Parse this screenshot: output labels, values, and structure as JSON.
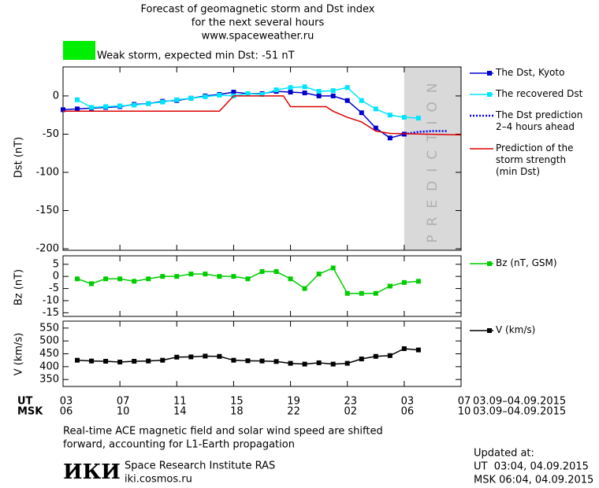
{
  "header": {
    "title_lines": [
      "Forecast of geomagnetic storm and Dst index",
      "for the next several hours",
      "www.spaceweather.ru"
    ]
  },
  "storm": {
    "label": "Weak storm, expected min Dst: -51 nT",
    "color": "#00ee00"
  },
  "chart_data": [
    {
      "type": "line",
      "y_label": "Dst (nT)",
      "ylim": [
        -202,
        38
      ],
      "yticks": [
        0,
        -50,
        -100,
        -150,
        -200
      ],
      "prediction": {
        "label": "PREDICTION",
        "span": [
          24,
          28
        ],
        "color": "#d9d9d9"
      },
      "series": [
        {
          "name": "The Dst, Kyoto",
          "color": "#0000cc",
          "marker": "square",
          "x": [
            0,
            1,
            2,
            3,
            4,
            5,
            6,
            7,
            8,
            9,
            10,
            11,
            12,
            13,
            14,
            15,
            16,
            17,
            18,
            19,
            20,
            21,
            22,
            23,
            24
          ],
          "values": [
            -18,
            -17,
            -16,
            -15,
            -14,
            -11,
            -10,
            -7,
            -6,
            -3,
            0,
            2,
            5,
            3,
            3,
            6,
            5,
            4,
            0,
            0,
            -6,
            -22,
            -42,
            -55,
            -50
          ]
        },
        {
          "name": "The recovered Dst",
          "color": "#00e5ff",
          "marker": "square",
          "x": [
            1,
            2,
            3,
            4,
            5,
            6,
            7,
            8,
            9,
            10,
            11,
            12,
            13,
            14,
            15,
            16,
            17,
            18,
            19,
            20,
            21,
            22,
            23,
            24,
            25
          ],
          "values": [
            -5,
            -15,
            -14,
            -13,
            -12,
            -10,
            -8,
            -5,
            -3,
            -1,
            1,
            0,
            3,
            2,
            8,
            11,
            12,
            6,
            7,
            11,
            -6,
            -17,
            -25,
            -28,
            -29
          ]
        },
        {
          "name": "The Dst prediction\n2–4 hours ahead",
          "color": "#0000ff",
          "dash": true,
          "x": [
            24,
            25,
            26,
            27
          ],
          "values": [
            -50,
            -47,
            -46,
            -46
          ]
        },
        {
          "name": "Prediction of the\nstorm strength\n(min Dst)",
          "color": "#dd0000",
          "x": [
            0,
            11,
            12,
            15.5,
            16,
            18.5,
            19,
            20,
            21,
            22,
            23,
            28
          ],
          "values": [
            -20,
            -20,
            0,
            0,
            -14,
            -14,
            -20,
            -28,
            -34,
            -46,
            -49,
            -51
          ]
        }
      ]
    },
    {
      "type": "line",
      "y_label": "Bz (nT)",
      "ylim": [
        -16.5,
        8.5
      ],
      "yticks": [
        5,
        0,
        -5,
        -10,
        -15
      ],
      "series": [
        {
          "name": "Bz (nT, GSM)",
          "color": "#00cc00",
          "marker": "square",
          "x": [
            1,
            2,
            3,
            4,
            5,
            6,
            7,
            8,
            9,
            10,
            11,
            12,
            13,
            14,
            15,
            16,
            17,
            18,
            19,
            20,
            21,
            22,
            23,
            24,
            25
          ],
          "values": [
            -1,
            -3,
            -1,
            -1,
            -2,
            -1,
            0,
            0,
            1,
            1,
            0,
            0,
            -1,
            2,
            2,
            -1,
            -5,
            1,
            3.5,
            -7,
            -7,
            -7,
            -4,
            -2.5,
            -2
          ]
        }
      ]
    },
    {
      "type": "line",
      "y_label": "V (km/s)",
      "ylim": [
        323,
        577
      ],
      "yticks": [
        550,
        500,
        450,
        400,
        350
      ],
      "xlim": [
        0,
        28
      ],
      "xticks": [
        {
          "value": 0,
          "label": "03"
        },
        {
          "value": 4,
          "label": "07"
        },
        {
          "value": 8,
          "label": "11"
        },
        {
          "value": 12,
          "label": "15"
        },
        {
          "value": 16,
          "label": "19"
        },
        {
          "value": 20,
          "label": "23"
        },
        {
          "value": 24,
          "label": "03"
        },
        {
          "value": 28,
          "label": "07"
        }
      ],
      "x2ticks": [
        {
          "value": 0,
          "label": "06"
        },
        {
          "value": 4,
          "label": "10"
        },
        {
          "value": 8,
          "label": "14"
        },
        {
          "value": 12,
          "label": "18"
        },
        {
          "value": 16,
          "label": "22"
        },
        {
          "value": 20,
          "label": "02"
        },
        {
          "value": 24,
          "label": "06"
        },
        {
          "value": 28,
          "label": "10"
        }
      ],
      "x_label": "UT",
      "x2_label": "MSK",
      "x_range_label": "03.09–04.09.2015",
      "x2_range_label": "03.09–04.09.2015",
      "series": [
        {
          "name": "V (km/s)",
          "color": "#000000",
          "marker": "square",
          "x": [
            1,
            2,
            3,
            4,
            5,
            6,
            7,
            8,
            9,
            10,
            11,
            12,
            13,
            14,
            15,
            16,
            17,
            18,
            19,
            20,
            21,
            22,
            23,
            24,
            25
          ],
          "values": [
            425,
            422,
            421,
            418,
            421,
            422,
            425,
            437,
            438,
            441,
            440,
            425,
            423,
            422,
            420,
            413,
            410,
            415,
            410,
            413,
            430,
            440,
            443,
            470,
            465
          ]
        }
      ]
    }
  ],
  "footer": {
    "note_lines": [
      "Real-time ACE magnetic field and solar wind speed are shifted",
      "forward, accounting for L1-Earth propagation"
    ],
    "logo": "ИКИ",
    "institute": "Space Research Institute RAS",
    "site": "iki.cosmos.ru",
    "updated_lines": [
      "Updated at:",
      "UT  03:04, 04.09.2015",
      "MSK 06:04, 04.09.2015"
    ]
  }
}
